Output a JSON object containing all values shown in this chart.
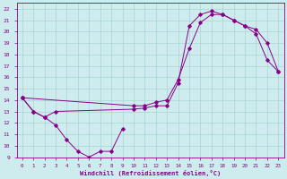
{
  "xlabel": "Windchill (Refroidissement éolien,°C)",
  "xlim": [
    -0.5,
    23.5
  ],
  "ylim": [
    9,
    22.5
  ],
  "xtick_vals": [
    0,
    1,
    2,
    3,
    4,
    5,
    6,
    7,
    8,
    9,
    10,
    11,
    12,
    13,
    14,
    15,
    16,
    17,
    18,
    19,
    20,
    21,
    22,
    23
  ],
  "ytick_vals": [
    9,
    10,
    11,
    12,
    13,
    14,
    15,
    16,
    17,
    18,
    19,
    20,
    21,
    22
  ],
  "bg_color": "#ceeced",
  "line_color": "#880088",
  "grid_color": "#aad4d6",
  "line1_x": [
    0,
    1,
    2,
    3,
    4,
    5,
    6,
    7,
    8,
    9
  ],
  "line1_y": [
    14.2,
    13.0,
    12.5,
    11.8,
    10.5,
    9.5,
    9.0,
    9.5,
    9.5,
    11.5
  ],
  "line2_x": [
    0,
    1,
    2,
    3,
    10,
    11,
    12,
    13,
    14,
    15,
    16,
    17,
    18,
    19,
    20,
    21,
    22,
    23
  ],
  "line2_y": [
    14.2,
    13.0,
    12.5,
    13.0,
    13.2,
    13.3,
    13.5,
    13.5,
    15.5,
    20.5,
    21.5,
    21.8,
    21.5,
    21.0,
    20.5,
    19.8,
    17.5,
    16.5
  ],
  "line3_x": [
    0,
    10,
    11,
    12,
    13,
    14,
    15,
    16,
    17,
    18,
    19,
    20,
    21,
    22,
    23
  ],
  "line3_y": [
    14.2,
    13.5,
    13.5,
    13.8,
    14.0,
    15.8,
    18.5,
    20.8,
    21.5,
    21.5,
    21.0,
    20.5,
    20.2,
    19.0,
    16.5
  ]
}
